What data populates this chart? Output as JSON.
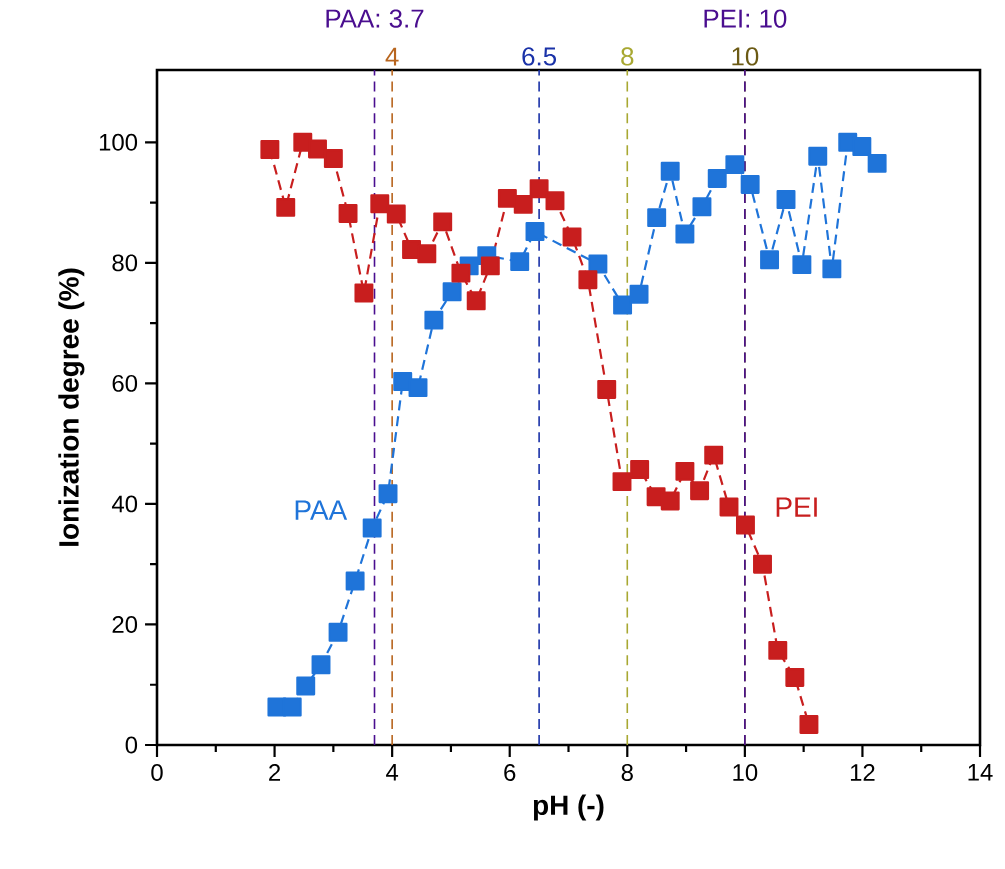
{
  "chart_data": {
    "type": "line",
    "xlabel": "pH (-)",
    "ylabel": "Ionization degree (%)",
    "xlim": [
      0,
      14
    ],
    "ylim": [
      0,
      112
    ],
    "xticks": [
      0,
      2,
      4,
      6,
      8,
      10,
      12,
      14
    ],
    "yticks": [
      0,
      20,
      40,
      60,
      80,
      100
    ],
    "marker": "square",
    "line_style": "dashed",
    "series": [
      {
        "name": "PAA",
        "color": "#1f74d9",
        "x": [
          2.04,
          2.3,
          2.53,
          2.79,
          3.08,
          3.37,
          3.66,
          3.93,
          4.18,
          4.44,
          4.71,
          5.02,
          5.31,
          5.61,
          6.17,
          6.43,
          7.5,
          7.92,
          8.2,
          8.5,
          8.73,
          8.98,
          9.27,
          9.53,
          9.83,
          10.09,
          10.42,
          10.7,
          10.97,
          11.24,
          11.48,
          11.75,
          11.99,
          12.25
        ],
        "values": [
          6.3,
          6.3,
          9.8,
          13.3,
          18.7,
          27.2,
          36.0,
          41.7,
          60.3,
          59.3,
          70.5,
          75.2,
          79.5,
          81.2,
          80.2,
          85.2,
          79.8,
          73.0,
          74.8,
          87.5,
          95.2,
          84.8,
          89.3,
          94.0,
          96.3,
          93.0,
          80.5,
          90.5,
          79.7,
          97.7,
          79.0,
          100.0,
          99.3,
          96.5
        ]
      },
      {
        "name": "PEI",
        "color": "#c81e1e",
        "x": [
          1.92,
          2.19,
          2.48,
          2.73,
          3.0,
          3.25,
          3.52,
          3.79,
          4.07,
          4.33,
          4.59,
          4.86,
          5.17,
          5.43,
          5.67,
          5.96,
          6.23,
          6.5,
          6.77,
          7.06,
          7.33,
          7.65,
          7.91,
          8.21,
          8.49,
          8.73,
          8.98,
          9.23,
          9.47,
          9.73,
          10.01,
          10.3,
          10.56,
          10.85,
          11.09
        ],
        "values": [
          98.8,
          89.2,
          100.0,
          98.9,
          97.3,
          88.2,
          75.0,
          89.8,
          88.1,
          82.2,
          81.5,
          86.8,
          78.3,
          73.7,
          79.5,
          90.7,
          89.7,
          92.3,
          90.3,
          84.3,
          77.2,
          59.0,
          43.7,
          45.7,
          41.2,
          40.5,
          45.4,
          42.2,
          48.1,
          39.5,
          36.5,
          30.0,
          15.7,
          11.2,
          3.4
        ]
      }
    ],
    "ref_lines": [
      {
        "axis": "x",
        "value": 4,
        "label": "4",
        "color": "#b8651e",
        "line_style": "dashed"
      },
      {
        "axis": "x",
        "value": 3.7,
        "label": "PAA: 3.7",
        "color": "#4a0e8f",
        "line_style": "dashed"
      },
      {
        "axis": "x",
        "value": 6.5,
        "label": "6.5",
        "color": "#1a32a8",
        "line_style": "dashed"
      },
      {
        "axis": "x",
        "value": 8,
        "label": "8",
        "color": "#a8a832",
        "line_style": "dashed"
      },
      {
        "axis": "x",
        "value": 10,
        "label": "10",
        "color": "#6b5a14",
        "line_style": "dashed"
      },
      {
        "axis": "x",
        "value": 10,
        "label": "PEI: 10",
        "color": "#4a0e8f",
        "line_style": "dashed"
      }
    ]
  }
}
